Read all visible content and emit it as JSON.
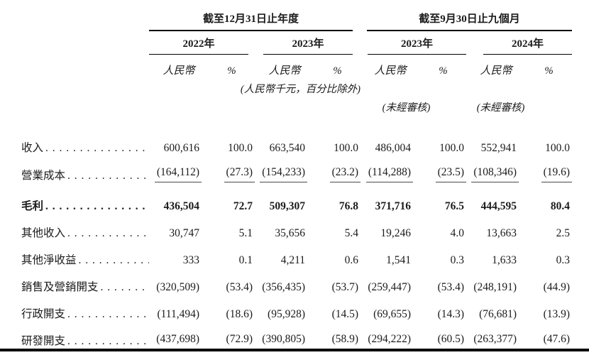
{
  "table": {
    "sections": [
      {
        "title": "截至12月31日止年度",
        "years": [
          "2022年",
          "2023年"
        ]
      },
      {
        "title": "截至9月30日止九個月",
        "years": [
          "2023年",
          "2024年"
        ]
      }
    ],
    "unit_currency": "人民幣",
    "unit_percent": "%",
    "note_units": "(人民幣千元，百分比除外)",
    "note_unaudited_9m2023": "(未經審核)",
    "note_unaudited_9m2024": "(未經審核)",
    "rows": [
      {
        "label": "收入",
        "values": [
          "600,616",
          "100.0",
          "663,540",
          "100.0",
          "486,004",
          "100.0",
          "552,941",
          "100.0"
        ]
      },
      {
        "label": "營業成本",
        "values": [
          "(164,112)",
          "(27.3)",
          "(154,233)",
          "(23.2)",
          "(114,288)",
          "(23.5)",
          "(108,346)",
          "(19.6)"
        ]
      },
      {
        "label": "毛利",
        "values": [
          "436,504",
          "72.7",
          "509,307",
          "76.8",
          "371,716",
          "76.5",
          "444,595",
          "80.4"
        ]
      },
      {
        "label": "其他收入",
        "values": [
          "30,747",
          "5.1",
          "35,656",
          "5.4",
          "19,246",
          "4.0",
          "13,663",
          "2.5"
        ]
      },
      {
        "label": "其他淨收益",
        "values": [
          "333",
          "0.1",
          "4,211",
          "0.6",
          "1,541",
          "0.3",
          "1,633",
          "0.3"
        ]
      },
      {
        "label": "銷售及營銷開支",
        "values": [
          "(320,509)",
          "(53.4)",
          "(356,435)",
          "(53.7)",
          "(259,447)",
          "(53.4)",
          "(248,191)",
          "(44.9)"
        ]
      },
      {
        "label": "行政開支",
        "values": [
          "(111,494)",
          "(18.6)",
          "(95,928)",
          "(14.5)",
          "(69,655)",
          "(14.3)",
          "(76,681)",
          "(13.9)"
        ]
      },
      {
        "label": "研發開支",
        "values": [
          "(437,698)",
          "(72.9)",
          "(390,805)",
          "(58.9)",
          "(294,222)",
          "(60.5)",
          "(263,377)",
          "(47.6)"
        ]
      }
    ]
  }
}
